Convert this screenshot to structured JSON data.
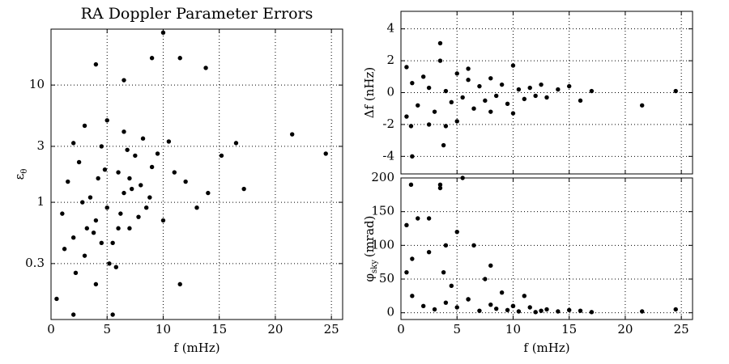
{
  "chart_data": [
    {
      "type": "scatter",
      "title": "RA Doppler Parameter Errors",
      "xlabel": "f (mHz)",
      "ylabel": {
        "symbol": "ε",
        "sub": "θ"
      },
      "log_y": true,
      "grid": true,
      "color": "#000000",
      "xlim": [
        0,
        26
      ],
      "xticks": [
        0,
        5,
        10,
        15,
        20,
        25
      ],
      "ylim": [
        0.1,
        30
      ],
      "yticks": [
        0.3,
        1,
        3,
        10
      ],
      "x": [
        1,
        1.5,
        2,
        2.5,
        3,
        3.5,
        4,
        4.5,
        5,
        5.5,
        6,
        6.5,
        7,
        7.5,
        8,
        8.5,
        9,
        2.2,
        3.2,
        4.2,
        5.2,
        6.2,
        7.2,
        8.2,
        1.2,
        2.8,
        3.8,
        4.8,
        5.8,
        6.8,
        7.8,
        3,
        4,
        5,
        6,
        7,
        2,
        4.5,
        6.5,
        8.8,
        9.5,
        10,
        10.5,
        11,
        12,
        13,
        0.5,
        2,
        5.5,
        10,
        4,
        9,
        11.5,
        13.8,
        6.5,
        21.5,
        24.5,
        16.5,
        17.2,
        15.2,
        14,
        11.5
      ],
      "values": [
        0.8,
        1.5,
        0.5,
        2.2,
        0.35,
        1.1,
        0.7,
        3,
        0.9,
        0.45,
        1.8,
        1.2,
        0.6,
        2.5,
        1.4,
        0.9,
        2,
        0.25,
        0.6,
        1.6,
        0.3,
        0.8,
        1.3,
        3.5,
        0.4,
        1,
        0.55,
        1.9,
        0.28,
        2.8,
        0.75,
        4.5,
        0.2,
        5,
        0.6,
        1.6,
        3.2,
        0.45,
        4,
        1.1,
        2.6,
        0.7,
        3.3,
        1.8,
        1.5,
        0.9,
        0.15,
        0.11,
        0.11,
        28,
        15,
        17,
        17,
        14,
        11,
        3.8,
        2.6,
        3.2,
        1.3,
        2.5,
        1.2,
        0.2
      ]
    },
    {
      "type": "scatter",
      "ylabel": {
        "symbol": "Δf (nHz)"
      },
      "grid": true,
      "color": "#000000",
      "xlim": [
        0,
        26
      ],
      "xticks": [
        0,
        5,
        10,
        15,
        20,
        25
      ],
      "hide_xtick_labels": true,
      "ylim": [
        -5.1,
        5.1
      ],
      "yticks": [
        -4,
        -2,
        0,
        2,
        4
      ],
      "x": [
        0.5,
        1,
        1.5,
        2,
        2.5,
        3,
        3.5,
        4,
        4.5,
        5,
        5.5,
        6,
        6.5,
        7,
        7.5,
        8,
        8.5,
        9,
        9.5,
        10,
        10.5,
        11,
        11.5,
        12,
        12.5,
        13,
        14,
        15,
        16,
        17,
        3.5,
        3.8,
        1,
        5,
        2.5,
        4,
        6,
        8,
        10,
        21.5,
        24.5,
        0.9,
        0.5
      ],
      "values": [
        -1.5,
        0.6,
        -0.8,
        1,
        0.3,
        -1.2,
        2,
        0.1,
        -0.6,
        1.2,
        -0.3,
        0.8,
        -1,
        0.4,
        -0.5,
        0.9,
        -0.2,
        0.5,
        -0.7,
        1.7,
        0.2,
        -0.4,
        0.3,
        -0.2,
        0.5,
        -0.3,
        0.2,
        0.4,
        -0.5,
        0.1,
        3.1,
        -3.3,
        -4,
        -1.8,
        -2,
        -2.1,
        1.5,
        -1.2,
        -1.3,
        -0.8,
        0.1,
        -2.1,
        1.6
      ]
    },
    {
      "type": "scatter",
      "xlabel": "f (mHz)",
      "ylabel": {
        "symbol": "φ",
        "sub": "sky",
        "unit": "(mrad)"
      },
      "grid": true,
      "color": "#000000",
      "xlim": [
        0,
        26
      ],
      "xticks": [
        0,
        5,
        10,
        15,
        20,
        25
      ],
      "ylim": [
        -10,
        200
      ],
      "yticks": [
        0,
        50,
        100,
        150,
        200
      ],
      "x": [
        0.5,
        1,
        1.5,
        2,
        2.5,
        3,
        3.5,
        4,
        4.5,
        5,
        5.5,
        6,
        6.5,
        7,
        7.5,
        8,
        8.5,
        9,
        9.5,
        10,
        10.5,
        11,
        11.5,
        12,
        12.5,
        13,
        14,
        15,
        16,
        17,
        3.5,
        3.8,
        1,
        5,
        2.5,
        4,
        6,
        8,
        10,
        21.5,
        24.5,
        0.9,
        0.5
      ],
      "values": [
        60,
        25,
        140,
        10,
        90,
        5,
        185,
        15,
        40,
        8,
        200,
        20,
        100,
        3,
        50,
        12,
        6,
        30,
        4,
        10,
        2,
        25,
        8,
        1,
        3,
        5,
        2,
        4,
        3,
        1,
        190,
        60,
        80,
        120,
        140,
        100,
        20,
        70,
        10,
        2,
        5,
        190,
        130
      ]
    }
  ]
}
